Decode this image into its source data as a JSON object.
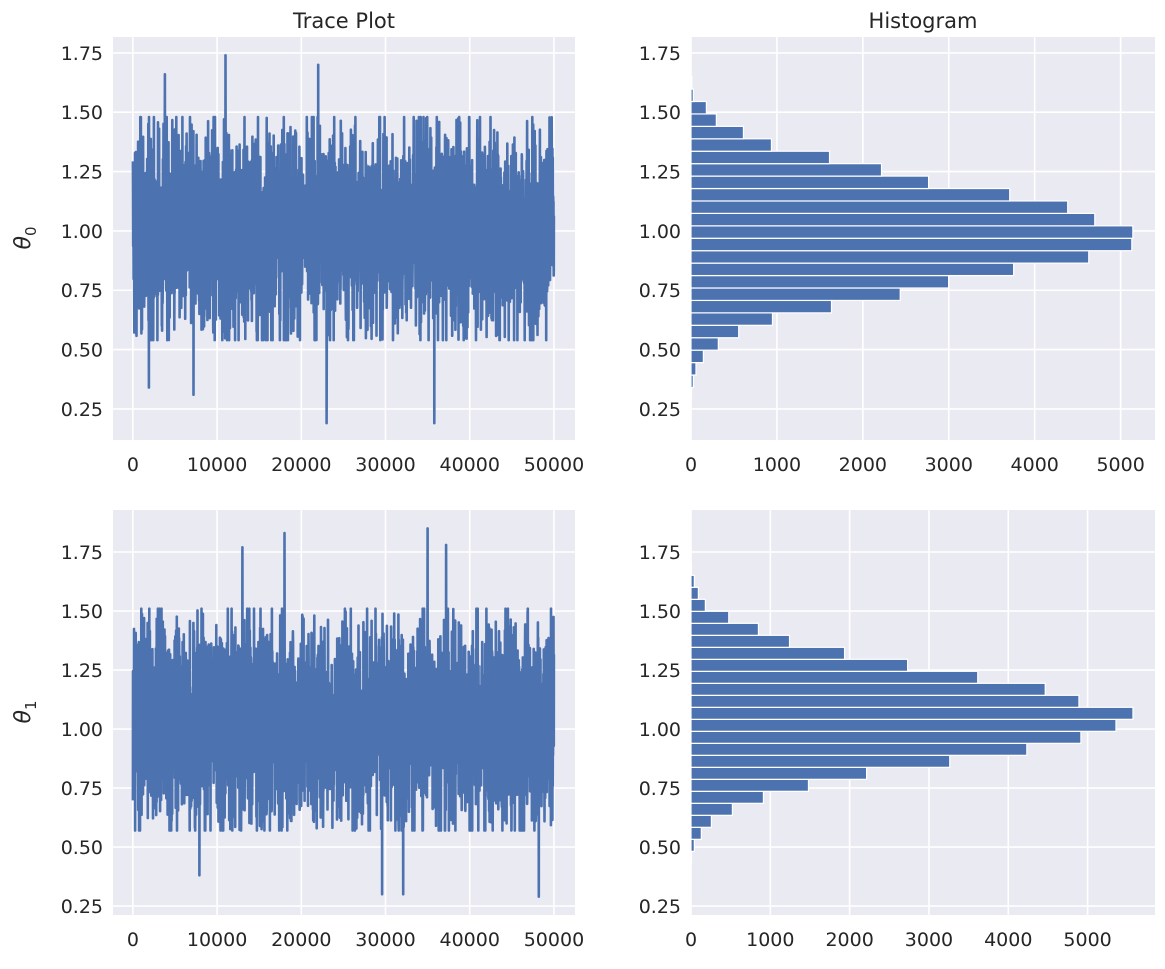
{
  "colors": {
    "series": "#4c72b0",
    "axes_background": "#eaeaf2",
    "grid": "#ffffff",
    "text": "#262626"
  },
  "chart_data": [
    {
      "type": "line",
      "title": "Trace Plot",
      "ylabel": "θ0",
      "ylabel_base": "θ",
      "ylabel_sub": "0",
      "n_samples": 50000,
      "xlim": [
        -2360,
        52500
      ],
      "ylim": [
        0.119,
        1.817
      ],
      "x_ticks": [
        0,
        10000,
        20000,
        30000,
        40000,
        50000
      ],
      "x_tick_labels": [
        "0",
        "10000",
        "20000",
        "30000",
        "40000",
        "50000"
      ],
      "y_ticks": [
        0.25,
        0.5,
        0.75,
        1.0,
        1.25,
        1.5,
        1.75
      ],
      "y_tick_labels": [
        "0.25",
        "0.50",
        "0.75",
        "1.00",
        "1.25",
        "1.50",
        "1.75"
      ],
      "typical_center": 1.0,
      "typical_band": [
        0.6,
        1.4
      ],
      "notable_points": [
        {
          "x": 11000,
          "y": 1.74
        },
        {
          "x": 22000,
          "y": 1.7
        },
        {
          "x": 3800,
          "y": 1.66
        },
        {
          "x": 23000,
          "y": 0.19
        },
        {
          "x": 35800,
          "y": 0.19
        },
        {
          "x": 1900,
          "y": 0.34
        },
        {
          "x": 7200,
          "y": 0.31
        }
      ],
      "grid": true
    },
    {
      "type": "bar",
      "orientation": "horizontal",
      "title": "Histogram",
      "bin_range": [
        0.288,
        1.65
      ],
      "counts": [
        5,
        27,
        58,
        144,
        318,
        555,
        948,
        1635,
        2435,
        2998,
        3755,
        4629,
        5130,
        5142,
        4699,
        4384,
        3709,
        2765,
        2217,
        1612,
        936,
        610,
        295,
        179,
        27,
        10
      ],
      "xlim": [
        0,
        5400
      ],
      "ylim": [
        0.119,
        1.817
      ],
      "x_ticks": [
        0,
        1000,
        2000,
        3000,
        4000,
        5000
      ],
      "x_tick_labels": [
        "0",
        "1000",
        "2000",
        "3000",
        "4000",
        "5000"
      ],
      "y_ticks": [
        0.25,
        0.5,
        0.75,
        1.0,
        1.25,
        1.5,
        1.75
      ],
      "y_tick_labels": [
        "0.25",
        "0.50",
        "0.75",
        "1.00",
        "1.25",
        "1.50",
        "1.75"
      ],
      "grid": true
    },
    {
      "type": "line",
      "title": "",
      "ylabel": "θ1",
      "ylabel_base": "θ",
      "ylabel_sub": "1",
      "n_samples": 50000,
      "xlim": [
        -2360,
        52500
      ],
      "ylim": [
        0.212,
        1.928
      ],
      "x_ticks": [
        0,
        10000,
        20000,
        30000,
        40000,
        50000
      ],
      "x_tick_labels": [
        "0",
        "10000",
        "20000",
        "30000",
        "40000",
        "50000"
      ],
      "y_ticks": [
        0.25,
        0.5,
        0.75,
        1.0,
        1.25,
        1.5,
        1.75
      ],
      "y_tick_labels": [
        "0.25",
        "0.50",
        "0.75",
        "1.00",
        "1.25",
        "1.50",
        "1.75"
      ],
      "typical_center": 1.03,
      "typical_band": [
        0.62,
        1.42
      ],
      "notable_points": [
        {
          "x": 35000,
          "y": 1.85
        },
        {
          "x": 18000,
          "y": 1.83
        },
        {
          "x": 37200,
          "y": 1.78
        },
        {
          "x": 13000,
          "y": 1.77
        },
        {
          "x": 48200,
          "y": 0.29
        },
        {
          "x": 29600,
          "y": 0.3
        },
        {
          "x": 32100,
          "y": 0.3
        },
        {
          "x": 7900,
          "y": 0.38
        }
      ],
      "grid": true
    },
    {
      "type": "bar",
      "orientation": "horizontal",
      "title": "",
      "bin_range": [
        0.431,
        1.702
      ],
      "counts": [
        4,
        42,
        130,
        257,
        522,
        913,
        1481,
        2214,
        3262,
        4234,
        4916,
        5358,
        5572,
        4891,
        4466,
        3615,
        2731,
        1936,
        1242,
        850,
        476,
        181,
        93,
        42,
        4
      ],
      "xlim": [
        0,
        5850
      ],
      "ylim": [
        0.212,
        1.928
      ],
      "x_ticks": [
        0,
        1000,
        2000,
        3000,
        4000,
        5000
      ],
      "x_tick_labels": [
        "0",
        "1000",
        "2000",
        "3000",
        "4000",
        "5000"
      ],
      "y_ticks": [
        0.25,
        0.5,
        0.75,
        1.0,
        1.25,
        1.5,
        1.75
      ],
      "y_tick_labels": [
        "0.25",
        "0.50",
        "0.75",
        "1.00",
        "1.25",
        "1.50",
        "1.75"
      ],
      "grid": true
    }
  ]
}
